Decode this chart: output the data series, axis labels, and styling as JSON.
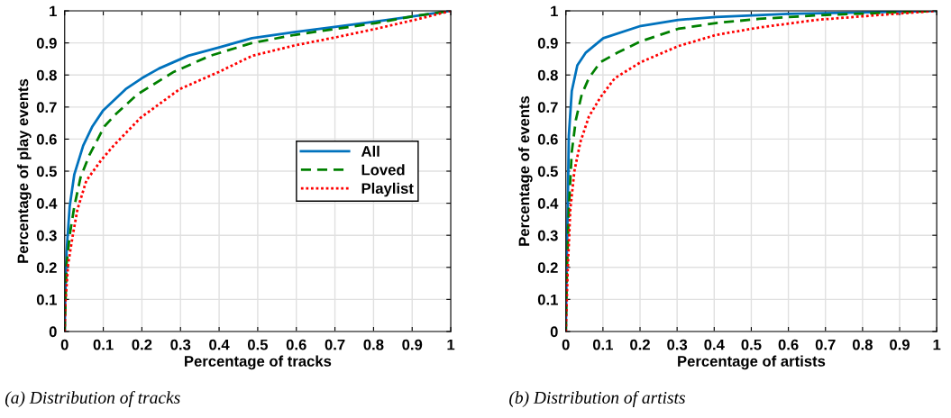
{
  "chart_data": [
    {
      "type": "line",
      "xlabel": "Percentage of tracks",
      "ylabel": "Percentage of play events",
      "annotations": [
        "(a) Distribution of tracks"
      ],
      "xlim": [
        0,
        1
      ],
      "ylim": [
        0,
        1
      ],
      "xticks": [
        0,
        0.1,
        0.2,
        0.3,
        0.4,
        0.5,
        0.6,
        0.7,
        0.8,
        0.9,
        1
      ],
      "yticks": [
        0,
        0.1,
        0.2,
        0.3,
        0.4,
        0.5,
        0.6,
        0.7,
        0.8,
        0.9,
        1
      ],
      "grid": true,
      "legend": "right",
      "marker": "none",
      "series": [
        {
          "name": "All",
          "color": "#0072bd",
          "line_style": "solid",
          "x": [
            0,
            0.0016,
            0.005,
            0.013,
            0.025,
            0.048,
            0.072,
            0.1,
            0.158,
            0.2,
            0.244,
            0.32,
            0.4,
            0.485,
            0.595,
            0.704,
            0.806,
            0.907,
            1
          ],
          "values": [
            0,
            0.11,
            0.25,
            0.39,
            0.49,
            0.58,
            0.64,
            0.69,
            0.756,
            0.79,
            0.82,
            0.86,
            0.886,
            0.915,
            0.934,
            0.951,
            0.967,
            0.984,
            1
          ]
        },
        {
          "name": "Loved",
          "color": "#008000",
          "line_style": "dashed",
          "x": [
            0,
            0.002,
            0.005,
            0.013,
            0.025,
            0.041,
            0.064,
            0.103,
            0.134,
            0.189,
            0.283,
            0.377,
            0.486,
            0.595,
            0.704,
            0.806,
            0.907,
            1
          ],
          "values": [
            0,
            0.09,
            0.21,
            0.3,
            0.39,
            0.48,
            0.55,
            0.64,
            0.68,
            0.74,
            0.81,
            0.86,
            0.9,
            0.925,
            0.944,
            0.962,
            0.984,
            1
          ]
        },
        {
          "name": "Playlist",
          "color": "#ff0000",
          "line_style": "dotted",
          "x": [
            0,
            0.002,
            0.009,
            0.021,
            0.033,
            0.056,
            0.095,
            0.127,
            0.197,
            0.298,
            0.4,
            0.486,
            0.595,
            0.704,
            0.806,
            0.907,
            1
          ],
          "values": [
            0,
            0.09,
            0.21,
            0.3,
            0.38,
            0.47,
            0.535,
            0.58,
            0.667,
            0.756,
            0.81,
            0.86,
            0.892,
            0.918,
            0.944,
            0.972,
            1
          ]
        }
      ]
    },
    {
      "type": "line",
      "xlabel": "Percentage of artists",
      "ylabel": "Percentage of events",
      "annotations": [
        "(b) Distribution of artists"
      ],
      "xlim": [
        0,
        1
      ],
      "ylim": [
        0,
        1
      ],
      "xticks": [
        0,
        0.1,
        0.2,
        0.3,
        0.4,
        0.5,
        0.6,
        0.7,
        0.8,
        0.9,
        1
      ],
      "yticks": [
        0,
        0.1,
        0.2,
        0.3,
        0.4,
        0.5,
        0.6,
        0.7,
        0.8,
        0.9,
        1
      ],
      "grid": true,
      "marker": "none",
      "series": [
        {
          "color": "#0072bd",
          "line_style": "solid",
          "x": [
            0,
            0.002,
            0.005,
            0.008,
            0.016,
            0.031,
            0.054,
            0.101,
            0.202,
            0.303,
            0.405,
            0.6,
            0.79,
            1
          ],
          "values": [
            0,
            0.19,
            0.38,
            0.61,
            0.75,
            0.83,
            0.87,
            0.915,
            0.953,
            0.972,
            0.981,
            0.991,
            0.995,
            1
          ]
        },
        {
          "color": "#008000",
          "line_style": "dashed",
          "x": [
            0,
            0.003,
            0.008,
            0.016,
            0.027,
            0.043,
            0.062,
            0.093,
            0.14,
            0.202,
            0.303,
            0.405,
            0.521,
            0.677,
            0.833,
            1
          ],
          "values": [
            0,
            0.19,
            0.38,
            0.56,
            0.66,
            0.74,
            0.79,
            0.84,
            0.87,
            0.905,
            0.944,
            0.962,
            0.975,
            0.986,
            0.993,
            1
          ]
        },
        {
          "color": "#ff0000",
          "line_style": "dotted",
          "x": [
            0,
            0.005,
            0.012,
            0.023,
            0.039,
            0.062,
            0.093,
            0.132,
            0.202,
            0.303,
            0.405,
            0.521,
            0.677,
            0.833,
            1
          ],
          "values": [
            0,
            0.19,
            0.38,
            0.5,
            0.59,
            0.67,
            0.73,
            0.79,
            0.84,
            0.89,
            0.925,
            0.948,
            0.972,
            0.986,
            1
          ]
        }
      ]
    }
  ]
}
